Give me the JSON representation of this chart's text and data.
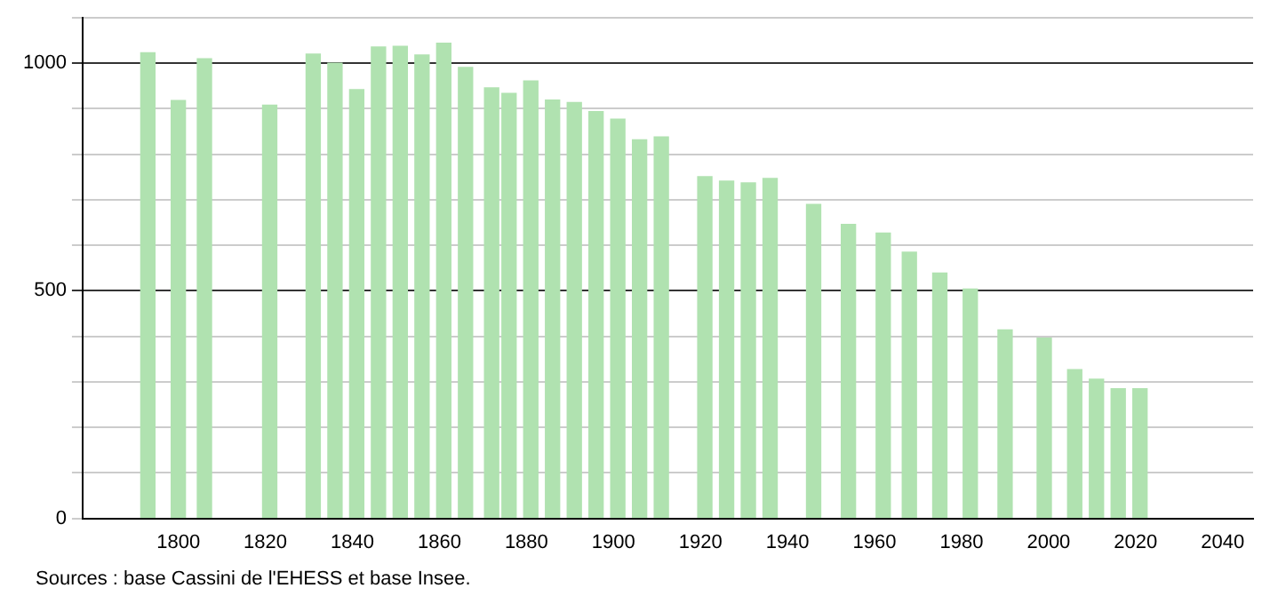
{
  "chart_data": {
    "type": "bar",
    "x": [
      1793,
      1800,
      1806,
      1821,
      1831,
      1836,
      1841,
      1846,
      1851,
      1856,
      1861,
      1866,
      1872,
      1876,
      1881,
      1886,
      1891,
      1896,
      1901,
      1906,
      1911,
      1921,
      1926,
      1931,
      1936,
      1946,
      1954,
      1962,
      1968,
      1975,
      1982,
      1990,
      1999,
      2006,
      2011,
      2016,
      2021
    ],
    "values": [
      1023,
      918,
      1010,
      908,
      1020,
      1000,
      942,
      1036,
      1037,
      1018,
      1044,
      991,
      946,
      934,
      961,
      919,
      914,
      894,
      877,
      832,
      838,
      751,
      741,
      737,
      747,
      690,
      646,
      627,
      585,
      539,
      504,
      414,
      396,
      327,
      306,
      285,
      285
    ],
    "color": "#b0e2b0",
    "xlim": [
      1778,
      2047
    ],
    "xticks": [
      1800,
      1820,
      1840,
      1860,
      1880,
      1900,
      1920,
      1940,
      1960,
      1980,
      2000,
      2020,
      2040
    ],
    "ylim": [
      0,
      1100
    ],
    "yticks": [
      0,
      {
        "value": 100,
        "label": null
      },
      {
        "value": 200,
        "label": null
      },
      {
        "value": 300,
        "label": null
      },
      {
        "value": 400,
        "label": null
      },
      500,
      {
        "value": 600,
        "label": null
      },
      {
        "value": 700,
        "label": null
      },
      {
        "value": 800,
        "label": null
      },
      {
        "value": 900,
        "label": null
      },
      1000,
      {
        "value": 1100,
        "label": null
      }
    ],
    "grid": "y",
    "legend": false,
    "annotations": [
      "Sources : base Cassini de l'EHESS et base Insee."
    ]
  }
}
